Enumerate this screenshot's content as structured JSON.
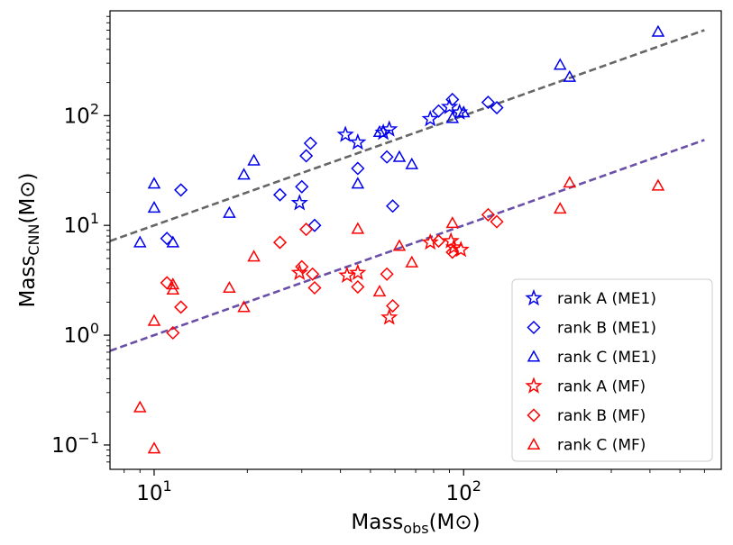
{
  "chart_data": {
    "type": "scatter",
    "xlabel": "Mass_obs (M⊙)",
    "ylabel": "Mass_CNN (M⊙)",
    "xscale": "log",
    "yscale": "log",
    "xlim": [
      7.2,
      680
    ],
    "ylim": [
      0.06,
      900
    ],
    "x_ticks": [
      {
        "value": 10,
        "base": "10",
        "exp": "1"
      },
      {
        "value": 100,
        "base": "10",
        "exp": "2"
      }
    ],
    "y_ticks": [
      {
        "value": 0.1,
        "base": "10",
        "exp": "−1"
      },
      {
        "value": 1,
        "label": "10",
        "sup": "0"
      },
      {
        "value": 10,
        "label": "10",
        "sup": "1"
      },
      {
        "value": 100,
        "label": "10",
        "sup": "2"
      }
    ],
    "legend_position": "lower right",
    "fit_lines": [
      {
        "color": "#666666",
        "points": [
          [
            7.2,
            7.2
          ],
          [
            600,
            600
          ]
        ]
      },
      {
        "color": "#6a4fa8",
        "points": [
          [
            7.2,
            0.72
          ],
          [
            600,
            60
          ]
        ]
      }
    ],
    "series": [
      {
        "name": "rank A (ME1)",
        "marker": "star",
        "color": "#0000ee",
        "points": [
          [
            29.5,
            16
          ],
          [
            41.5,
            67
          ],
          [
            45.5,
            57
          ],
          [
            55,
            70
          ],
          [
            57.5,
            75
          ],
          [
            78,
            93
          ],
          [
            90,
            120
          ],
          [
            97,
            107
          ]
        ]
      },
      {
        "name": "rank B (ME1)",
        "marker": "diamond",
        "color": "#0000ee",
        "points": [
          [
            11,
            7.6
          ],
          [
            12.2,
            21
          ],
          [
            25.5,
            19
          ],
          [
            30,
            22.5
          ],
          [
            31,
            43
          ],
          [
            32,
            56
          ],
          [
            33,
            10
          ],
          [
            45.5,
            33
          ],
          [
            56.5,
            42
          ],
          [
            59,
            15
          ],
          [
            83,
            110
          ],
          [
            92,
            140
          ],
          [
            120,
            132
          ],
          [
            128,
            118
          ]
        ]
      },
      {
        "name": "rank C (ME1)",
        "marker": "triangle",
        "color": "#0000ee",
        "points": [
          [
            9,
            7
          ],
          [
            10,
            24
          ],
          [
            10,
            14.5
          ],
          [
            11.5,
            7
          ],
          [
            17.5,
            13
          ],
          [
            19.5,
            29
          ],
          [
            21,
            39
          ],
          [
            45.5,
            24
          ],
          [
            53.5,
            71
          ],
          [
            62,
            42
          ],
          [
            68,
            36
          ],
          [
            92,
            95
          ],
          [
            100,
            107
          ],
          [
            205,
            290
          ],
          [
            220,
            225
          ],
          [
            425,
            580
          ]
        ]
      },
      {
        "name": "rank A (MF)",
        "marker": "star",
        "color": "#ff0000",
        "points": [
          [
            29.5,
            3.7
          ],
          [
            42,
            3.5
          ],
          [
            45.5,
            3.7
          ],
          [
            57.5,
            1.45
          ],
          [
            78,
            7
          ],
          [
            91,
            7.2
          ],
          [
            93,
            6.3
          ],
          [
            98,
            6
          ]
        ]
      },
      {
        "name": "rank B (MF)",
        "marker": "diamond",
        "color": "#ff0000",
        "points": [
          [
            11,
            3
          ],
          [
            11.5,
            1.05
          ],
          [
            12.2,
            1.8
          ],
          [
            25.5,
            7
          ],
          [
            30,
            4.2
          ],
          [
            31,
            9.2
          ],
          [
            32.5,
            3.6
          ],
          [
            33,
            2.7
          ],
          [
            45.5,
            2.75
          ],
          [
            56.5,
            3.6
          ],
          [
            59,
            1.85
          ],
          [
            83,
            7.2
          ],
          [
            92,
            5.7
          ],
          [
            120,
            12.5
          ],
          [
            128,
            10.8
          ]
        ]
      },
      {
        "name": "rank C (MF)",
        "marker": "triangle",
        "color": "#ff0000",
        "points": [
          [
            9,
            0.22
          ],
          [
            10,
            0.093
          ],
          [
            10,
            1.35
          ],
          [
            11.5,
            2.9
          ],
          [
            11.5,
            2.6
          ],
          [
            17.5,
            2.7
          ],
          [
            19.5,
            1.8
          ],
          [
            21,
            5.2
          ],
          [
            45.5,
            9.3
          ],
          [
            53.5,
            2.5
          ],
          [
            62,
            6.5
          ],
          [
            68,
            4.6
          ],
          [
            92,
            10.5
          ],
          [
            205,
            14.2
          ],
          [
            220,
            24.5
          ],
          [
            425,
            23
          ]
        ]
      }
    ]
  }
}
